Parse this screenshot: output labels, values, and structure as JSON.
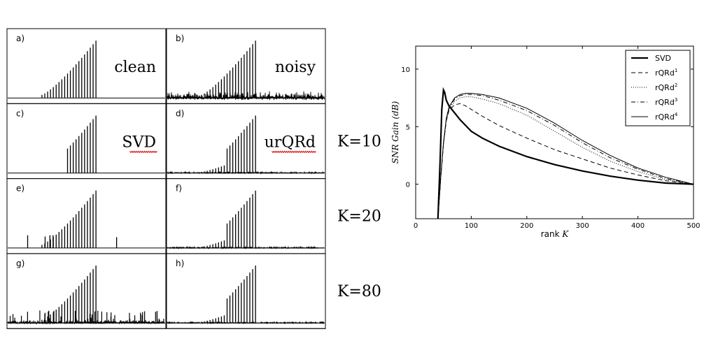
{
  "chart_data": [
    {
      "type": "line",
      "title": "",
      "layout": "4 rows x 2 columns of spectra panels",
      "panels": [
        {
          "id": "a",
          "label": "a)",
          "caption": "clean",
          "noise": "none",
          "spurious_peaks": "none"
        },
        {
          "id": "b",
          "label": "b)",
          "caption": "noisy",
          "noise": "high",
          "spurious_peaks": "none"
        },
        {
          "id": "c",
          "label": "c)",
          "caption": "SVD",
          "noise": "none",
          "spurious_peaks": "none",
          "caption_underline": "red wavy"
        },
        {
          "id": "d",
          "label": "d)",
          "caption": "urQRd",
          "noise": "low",
          "spurious_peaks": "few",
          "caption_underline": "red wavy"
        },
        {
          "id": "e",
          "label": "e)",
          "caption": "",
          "noise": "none",
          "spurious_peaks": "few"
        },
        {
          "id": "f",
          "label": "f)",
          "caption": "",
          "noise": "low",
          "spurious_peaks": "few"
        },
        {
          "id": "g",
          "label": "g)",
          "caption": "",
          "noise": "medium",
          "spurious_peaks": "many"
        },
        {
          "id": "h",
          "label": "h)",
          "caption": "",
          "noise": "low",
          "spurious_peaks": "few"
        }
      ],
      "row_labels": [
        "K=10",
        "K=20",
        "K=80"
      ]
    },
    {
      "type": "line",
      "title": "",
      "xlabel": "rank K",
      "ylabel": "SNR Gain (dB)",
      "xlim": [
        0,
        500
      ],
      "ylim": [
        -3,
        12
      ],
      "xticks": [
        0,
        100,
        200,
        300,
        400,
        500
      ],
      "yticks": [
        0,
        5,
        10
      ],
      "legend_position": "top-right",
      "grid": false,
      "series": [
        {
          "name": "SVD",
          "style": "solid-thick",
          "x": [
            40,
            44,
            47,
            50,
            52,
            55,
            60,
            70,
            80,
            100,
            120,
            150,
            200,
            250,
            300,
            350,
            400,
            450,
            500
          ],
          "y": [
            -3,
            2,
            6.5,
            8.2,
            8.0,
            7.3,
            6.8,
            6.2,
            5.6,
            4.6,
            4.0,
            3.3,
            2.4,
            1.7,
            1.15,
            0.7,
            0.35,
            0.1,
            0
          ]
        },
        {
          "name": "rQRd1",
          "style": "dashed",
          "x": [
            40,
            45,
            50,
            55,
            60,
            70,
            80,
            90,
            100,
            120,
            150,
            200,
            250,
            300,
            350,
            400,
            450,
            500
          ],
          "y": [
            -3,
            0.5,
            3.5,
            5.5,
            6.4,
            6.9,
            7.0,
            6.8,
            6.5,
            5.9,
            5.1,
            4.0,
            3.0,
            2.2,
            1.4,
            0.8,
            0.3,
            0
          ]
        },
        {
          "name": "rQRd2",
          "style": "dotted",
          "x": [
            40,
            45,
            50,
            55,
            60,
            70,
            80,
            90,
            100,
            120,
            150,
            200,
            250,
            300,
            350,
            400,
            450,
            500
          ],
          "y": [
            -3,
            0.5,
            3.5,
            5.5,
            6.5,
            7.2,
            7.5,
            7.6,
            7.6,
            7.4,
            7.0,
            6.0,
            4.6,
            3.2,
            2.0,
            1.1,
            0.4,
            0
          ]
        },
        {
          "name": "rQRd3",
          "style": "dashdot",
          "x": [
            40,
            45,
            50,
            55,
            60,
            70,
            80,
            90,
            100,
            120,
            150,
            200,
            250,
            300,
            350,
            400,
            450,
            500
          ],
          "y": [
            -3,
            0.5,
            3.5,
            5.6,
            6.6,
            7.4,
            7.7,
            7.8,
            7.8,
            7.7,
            7.3,
            6.4,
            5.1,
            3.6,
            2.3,
            1.3,
            0.5,
            0
          ]
        },
        {
          "name": "rQRd4",
          "style": "solid-thin",
          "x": [
            40,
            45,
            50,
            55,
            60,
            70,
            80,
            90,
            100,
            120,
            150,
            200,
            250,
            300,
            350,
            400,
            450,
            500
          ],
          "y": [
            -3,
            0.5,
            3.6,
            5.7,
            6.7,
            7.5,
            7.8,
            7.9,
            7.9,
            7.8,
            7.5,
            6.6,
            5.3,
            3.8,
            2.5,
            1.4,
            0.6,
            0
          ]
        }
      ],
      "legend": [
        {
          "label": "SVD",
          "sup": ""
        },
        {
          "label": "rQRd",
          "sup": "1"
        },
        {
          "label": "rQRd",
          "sup": "2"
        },
        {
          "label": "rQRd",
          "sup": "3"
        },
        {
          "label": "rQRd",
          "sup": "4"
        }
      ],
      "xlabel_parts": {
        "text": "rank ",
        "var": "K"
      },
      "ylabel_parts": {
        "main": "SNR Gain",
        "unit": " (dB)"
      }
    }
  ]
}
